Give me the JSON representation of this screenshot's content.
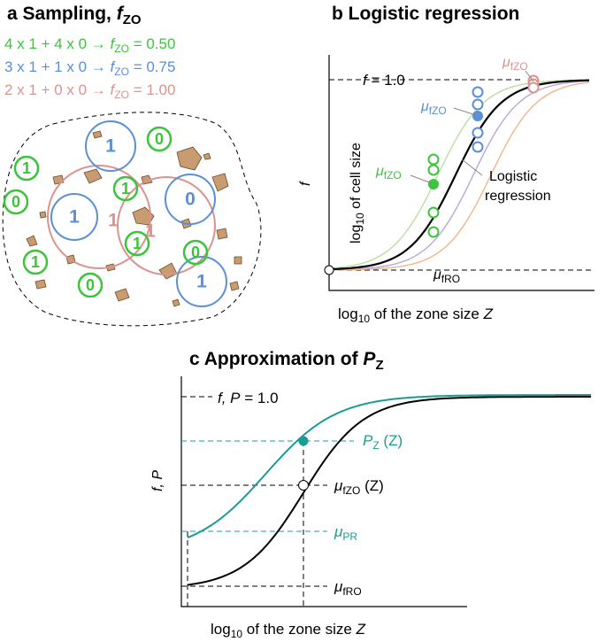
{
  "panel_a": {
    "label": "a",
    "title": "Sampling,",
    "title_var": "f",
    "title_sub": "ZO",
    "equations": [
      {
        "text": "4 x 1 + 4 x 0 →",
        "var": "f",
        "sub": "ZO",
        "result": "= 0.50"
      },
      {
        "text": "3 x 1 + 1 x 0 →",
        "var": "f",
        "sub": "ZO",
        "result": "= 0.75"
      },
      {
        "text": "2 x 1 + 0 x 0 →",
        "var": "f",
        "sub": "ZO",
        "result": "= 1.00"
      }
    ],
    "green_labels": [
      "0",
      "1",
      "0",
      "1",
      "1",
      "1",
      "0",
      "0"
    ],
    "blue_labels": [
      "1",
      "1",
      "0",
      "1"
    ],
    "pink_labels": [
      "1",
      "1"
    ]
  },
  "panel_b": {
    "label": "b",
    "title": "Logistic regression",
    "y_label": "f",
    "inner_label": {
      "pre": "log",
      "sub": "10",
      "text": "of cell size"
    },
    "top_label": {
      "var": "f",
      "text": "= 1.0"
    },
    "mu_labels": [
      {
        "var": "μ",
        "sub": "fZO"
      },
      {
        "var": "μ",
        "sub": "fZO"
      },
      {
        "var": "μ",
        "sub": "fZO"
      }
    ],
    "curve_label": [
      "Logistic",
      "regression"
    ],
    "bottom_label": {
      "var": "μ",
      "sub": "fRO"
    },
    "x_label": {
      "pre": "log",
      "sub": "10",
      "text": "of the zone size",
      "var": "Z"
    }
  },
  "panel_c": {
    "label": "c",
    "title": "Approximation of",
    "title_var": "P",
    "title_sub": "Z",
    "y_label": "f, P",
    "top_label": {
      "var": "f, P",
      "text": "= 1.0"
    },
    "pz_label": {
      "var": "P",
      "sub": "Z",
      "text": "(Z)"
    },
    "mufzo_label": {
      "var": "μ",
      "sub": "fZO",
      "text": "(Z)"
    },
    "mupr_label": {
      "var": "μ",
      "sub": "PR"
    },
    "mufro_label": {
      "var": "μ",
      "sub": "fRO"
    },
    "x_label": {
      "pre": "log",
      "sub": "10",
      "text": "of the zone size",
      "var": "Z"
    }
  }
}
